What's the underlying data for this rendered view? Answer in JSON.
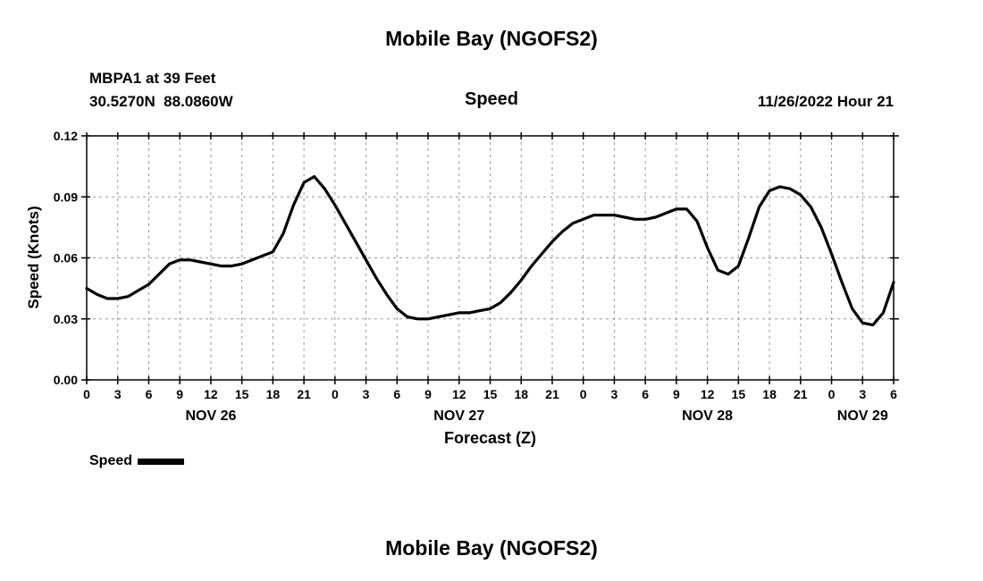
{
  "page": {
    "title_top": "Mobile Bay (NGOFS2)",
    "title_bottom": "Mobile Bay (NGOFS2)"
  },
  "header": {
    "station": "MBPA1 at 39 Feet",
    "coords": "30.5270N  88.0860W",
    "panel_title": "Speed",
    "datetime": "11/26/2022 Hour 21"
  },
  "legend": {
    "label": "Speed",
    "swatch_color": "#000000"
  },
  "chart_data": {
    "type": "line",
    "title": "Speed",
    "xlabel": "Forecast (Z)",
    "ylabel": "Speed (Knots)",
    "xlim": [
      0,
      78
    ],
    "ylim": [
      0,
      0.12
    ],
    "grid": "dashed",
    "grid_color": "#999999",
    "legend_position": "bottom-left",
    "xticks": [
      0,
      3,
      6,
      9,
      12,
      15,
      18,
      21,
      24,
      27,
      30,
      33,
      36,
      39,
      42,
      45,
      48,
      51,
      54,
      57,
      60,
      63,
      66,
      69,
      72,
      75,
      78
    ],
    "xtick_labels": [
      "0",
      "3",
      "6",
      "9",
      "12",
      "15",
      "18",
      "21",
      "0",
      "3",
      "6",
      "9",
      "12",
      "15",
      "18",
      "21",
      "0",
      "3",
      "6",
      "9",
      "12",
      "15",
      "18",
      "21",
      "0",
      "3",
      "6"
    ],
    "yticks": [
      0,
      0.03,
      0.06,
      0.09,
      0.12
    ],
    "ytick_labels": [
      "0.00",
      "0.03",
      "0.06",
      "0.09",
      "0.12"
    ],
    "date_labels": [
      {
        "label": "NOV 26",
        "hour": 12
      },
      {
        "label": "NOV 27",
        "hour": 36
      },
      {
        "label": "NOV 28",
        "hour": 60
      },
      {
        "label": "NOV 29",
        "hour": 75
      }
    ],
    "series": [
      {
        "name": "Speed",
        "color": "#000000",
        "x": [
          0,
          1,
          2,
          3,
          4,
          5,
          6,
          7,
          8,
          9,
          10,
          11,
          12,
          13,
          14,
          15,
          16,
          17,
          18,
          19,
          20,
          21,
          22,
          23,
          24,
          25,
          26,
          27,
          28,
          29,
          30,
          31,
          32,
          33,
          34,
          35,
          36,
          37,
          38,
          39,
          40,
          41,
          42,
          43,
          44,
          45,
          46,
          47,
          48,
          49,
          50,
          51,
          52,
          53,
          54,
          55,
          56,
          57,
          58,
          59,
          60,
          61,
          62,
          63,
          64,
          65,
          66,
          67,
          68,
          69,
          70,
          71,
          72,
          73,
          74,
          75,
          76,
          77,
          78
        ],
        "y": [
          0.045,
          0.042,
          0.04,
          0.04,
          0.041,
          0.044,
          0.047,
          0.052,
          0.057,
          0.059,
          0.059,
          0.058,
          0.057,
          0.056,
          0.056,
          0.057,
          0.059,
          0.061,
          0.063,
          0.072,
          0.086,
          0.097,
          0.1,
          0.094,
          0.086,
          0.077,
          0.068,
          0.059,
          0.05,
          0.042,
          0.035,
          0.031,
          0.03,
          0.03,
          0.031,
          0.032,
          0.033,
          0.033,
          0.034,
          0.035,
          0.038,
          0.043,
          0.049,
          0.056,
          0.062,
          0.068,
          0.073,
          0.077,
          0.079,
          0.081,
          0.081,
          0.081,
          0.08,
          0.079,
          0.079,
          0.08,
          0.082,
          0.084,
          0.084,
          0.078,
          0.065,
          0.054,
          0.052,
          0.056,
          0.07,
          0.085,
          0.093,
          0.095,
          0.094,
          0.091,
          0.085,
          0.075,
          0.062,
          0.048,
          0.035,
          0.028,
          0.027,
          0.033,
          0.048
        ]
      }
    ]
  }
}
